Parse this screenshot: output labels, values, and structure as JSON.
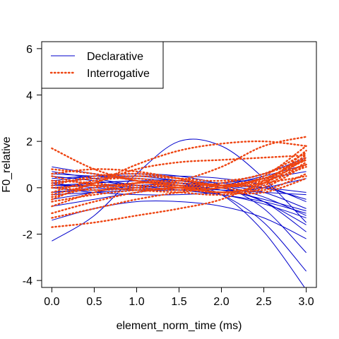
{
  "chart_data": {
    "type": "line",
    "title": "",
    "xlabel": "element_norm_time (ms)",
    "ylabel": "F0_relative",
    "xlim": [
      -0.12,
      3.12
    ],
    "ylim": [
      -4.3,
      6.3
    ],
    "xticks": [
      "0.0",
      "0.5",
      "1.0",
      "1.5",
      "2.0",
      "2.5",
      "3.0"
    ],
    "yticks": [
      "-4",
      "-2",
      "0",
      "2",
      "4",
      "6"
    ],
    "legend": {
      "placement": "top-left",
      "entries": [
        "Declarative",
        "Interrogative"
      ]
    },
    "x": [
      0,
      0.5,
      1.0,
      1.5,
      2.0,
      2.5,
      3.0
    ],
    "series": [
      {
        "name": "Declarative",
        "color": "#0000cc",
        "line_style": "solid",
        "curves": [
          [
            -2.3,
            -1.2,
            0.6,
            2.0,
            1.8,
            0.4,
            -1.5
          ],
          [
            0.6,
            0.5,
            0.4,
            0.3,
            0.1,
            -0.4,
            -1.2
          ],
          [
            0.4,
            0.5,
            0.5,
            0.3,
            0.0,
            -0.6,
            -1.6
          ],
          [
            0.2,
            0.4,
            0.5,
            0.5,
            0.4,
            0.1,
            -0.6
          ],
          [
            0.1,
            0.2,
            0.3,
            0.3,
            0.2,
            0.0,
            -0.5
          ],
          [
            0.0,
            0.1,
            0.2,
            0.2,
            0.1,
            -0.2,
            -0.9
          ],
          [
            -0.2,
            0.0,
            0.2,
            0.2,
            0.0,
            -0.6,
            -1.9
          ],
          [
            0.3,
            0.5,
            0.6,
            0.5,
            0.1,
            -0.9,
            -2.8
          ],
          [
            0.9,
            0.6,
            0.3,
            0.1,
            -0.3,
            -1.5,
            -3.6
          ],
          [
            0.0,
            0.2,
            0.3,
            0.2,
            -0.3,
            -1.9,
            -4.4
          ],
          [
            -0.5,
            -0.2,
            0.1,
            0.1,
            -0.1,
            -0.5,
            -1.0
          ],
          [
            -0.8,
            -0.5,
            -0.2,
            0.0,
            0.2,
            0.4,
            0.7
          ],
          [
            0.2,
            0.0,
            -0.1,
            -0.1,
            0.1,
            0.5,
            1.0
          ],
          [
            -0.3,
            -0.2,
            -0.1,
            0.0,
            0.2,
            0.6,
            1.3
          ],
          [
            0.5,
            0.3,
            0.1,
            0.0,
            -0.1,
            -0.2,
            -0.3
          ],
          [
            -0.2,
            -0.1,
            0.0,
            0.1,
            0.1,
            0.0,
            -0.2
          ],
          [
            0.7,
            0.4,
            0.1,
            -0.1,
            -0.3,
            -0.6,
            -1.1
          ],
          [
            -1.4,
            -0.9,
            -0.6,
            -0.6,
            -0.8,
            -1.3,
            -2.2
          ],
          [
            0.1,
            0.1,
            0.0,
            -0.1,
            -0.3,
            -0.7,
            -1.3
          ],
          [
            0.0,
            -0.2,
            -0.3,
            -0.3,
            -0.2,
            0.0,
            0.4
          ]
        ]
      },
      {
        "name": "Interrogative",
        "color": "#ee4411",
        "line_style": "dotted",
        "curves": [
          [
            1.7,
            0.8,
            0.3,
            0.1,
            0.2,
            0.6,
            1.2
          ],
          [
            -1.7,
            -1.5,
            -1.2,
            -0.9,
            -0.5,
            0.3,
            1.4
          ],
          [
            -0.3,
            0.2,
            1.0,
            1.6,
            1.9,
            2.0,
            1.8
          ],
          [
            0.0,
            -0.1,
            0.0,
            0.3,
            0.9,
            1.8,
            2.2
          ],
          [
            -0.5,
            0.2,
            0.8,
            1.1,
            1.2,
            1.3,
            1.4
          ],
          [
            0.2,
            0.4,
            0.5,
            0.4,
            0.3,
            0.6,
            1.5
          ],
          [
            -0.8,
            -0.2,
            0.2,
            0.3,
            0.1,
            0.4,
            1.3
          ],
          [
            0.5,
            0.1,
            -0.1,
            -0.2,
            -0.3,
            0.0,
            1.0
          ],
          [
            -0.2,
            0.3,
            0.4,
            0.1,
            -0.2,
            0.1,
            1.1
          ],
          [
            0.8,
            0.6,
            0.3,
            0.0,
            -0.2,
            0.2,
            1.6
          ],
          [
            -1.1,
            -0.6,
            -0.2,
            0.0,
            0.0,
            0.5,
            1.8
          ],
          [
            0.1,
            0.5,
            0.6,
            0.4,
            0.0,
            -0.1,
            0.6
          ],
          [
            -0.4,
            0.0,
            0.2,
            0.2,
            0.1,
            0.3,
            0.9
          ],
          [
            0.3,
            0.2,
            0.0,
            -0.1,
            0.0,
            0.4,
            1.2
          ],
          [
            -0.6,
            -0.3,
            -0.1,
            0.0,
            0.1,
            0.4,
            1.0
          ],
          [
            0.6,
            0.8,
            0.7,
            0.4,
            0.1,
            0.2,
            1.3
          ],
          [
            -1.3,
            -0.9,
            -0.5,
            -0.2,
            0.0,
            0.2,
            0.5
          ],
          [
            0.0,
            0.1,
            0.1,
            0.0,
            -0.2,
            -0.2,
            0.4
          ]
        ]
      }
    ]
  }
}
